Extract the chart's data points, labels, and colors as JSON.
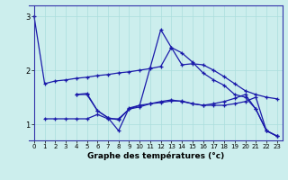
{
  "xlabel": "Graphe des températures (°c)",
  "background_color": "#cceeed",
  "line_color": "#1a1aaa",
  "xlim": [
    -0.5,
    23.5
  ],
  "ylim": [
    0.7,
    3.2
  ],
  "yticks": [
    1,
    2,
    3
  ],
  "xticks": [
    0,
    1,
    2,
    3,
    4,
    5,
    6,
    7,
    8,
    9,
    10,
    11,
    12,
    13,
    14,
    15,
    16,
    17,
    18,
    19,
    20,
    21,
    22,
    23
  ],
  "grid_color": "#aadddc",
  "series": [
    {
      "x": [
        0,
        1,
        2,
        3,
        4,
        5,
        6,
        7,
        8,
        9,
        10,
        11,
        12,
        13,
        14,
        15,
        16,
        17,
        18,
        19,
        20,
        21,
        22,
        23
      ],
      "y": [
        3.0,
        1.75,
        1.8,
        1.82,
        1.85,
        1.87,
        1.9,
        1.92,
        1.95,
        1.97,
        2.0,
        2.03,
        2.07,
        2.42,
        2.1,
        2.12,
        2.1,
        2.0,
        1.88,
        1.75,
        1.62,
        1.55,
        1.5,
        1.47
      ]
    },
    {
      "x": [
        4,
        5,
        6,
        7,
        8,
        9,
        10,
        11,
        12,
        13,
        14,
        15,
        16,
        17,
        18,
        19,
        20,
        21,
        22,
        23
      ],
      "y": [
        1.55,
        1.55,
        1.25,
        1.12,
        0.88,
        1.3,
        1.35,
        1.38,
        1.42,
        1.45,
        1.42,
        1.38,
        1.35,
        1.38,
        1.42,
        1.48,
        1.55,
        1.28,
        0.88,
        0.78
      ]
    },
    {
      "x": [
        4,
        5,
        6,
        7,
        8,
        9,
        10,
        11,
        12,
        13,
        14,
        15,
        16,
        17,
        18,
        19,
        20,
        21,
        22,
        23
      ],
      "y": [
        1.55,
        1.57,
        1.25,
        1.12,
        1.08,
        1.28,
        1.35,
        2.05,
        2.75,
        2.42,
        2.32,
        2.15,
        1.95,
        1.82,
        1.72,
        1.55,
        1.5,
        1.28,
        0.88,
        0.78
      ]
    },
    {
      "x": [
        1,
        2,
        3,
        4,
        5,
        6,
        7,
        8,
        9,
        10,
        11,
        12,
        13,
        14,
        15,
        16,
        17,
        18,
        19,
        20,
        21,
        22,
        23
      ],
      "y": [
        1.1,
        1.1,
        1.1,
        1.1,
        1.1,
        1.18,
        1.1,
        1.1,
        1.28,
        1.32,
        1.38,
        1.4,
        1.43,
        1.43,
        1.38,
        1.35,
        1.35,
        1.35,
        1.38,
        1.42,
        1.5,
        0.88,
        0.78
      ]
    }
  ]
}
